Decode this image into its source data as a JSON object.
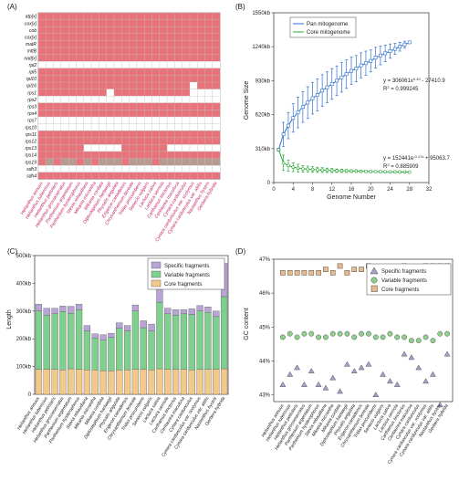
{
  "chart_data": [
    {
      "panel_label": "(A)",
      "type": "heatmap",
      "genes": [
        "atp[x]",
        "cox[x]",
        "cob",
        "cox[x]",
        "matR",
        "mttB",
        "nad[x]",
        "rpl2",
        "rpl5",
        "rpl10",
        "rpl16",
        "rps1",
        "rps2",
        "rps3",
        "rps4",
        "rps7",
        "rps10",
        "rps11",
        "rps12",
        "rps13",
        "rps14",
        "rps19",
        "sdh3",
        "sdh4"
      ],
      "species": [
        "Helianthus annuus",
        "Helianthus tuberosus",
        "Helianthus petiolaris",
        "Helianthus grosseserratus",
        "Parthenium argentatum",
        "Parthenium hysterophorus",
        "Stevia rebaudiana",
        "Mikania micrantha",
        "Mikania cordata",
        "Diplostephium hartwegii",
        "Physalis angulata",
        "Erigeron canadensis",
        "Chrysanthemum boreale",
        "Tridax procumbens",
        "Senecio vulgaris",
        "Lactuca sativa",
        "Lactuca serriola",
        "Carthamus tinctorius",
        "Centaurea maculosa",
        "Cynara cardunculus",
        "Cynara cardunculus var. scolymus",
        "Cynara cardunculus var. altilis",
        "Nastanthus hystrix",
        "Gerbera hybrida"
      ],
      "colors": {
        "present": "#e8737a",
        "absent": "#ffffff",
        "partial": "#b89a90"
      },
      "matrix": [
        "111111111111111111111111",
        "111111111111111111111111",
        "111111111111111111111111",
        "111111111111111111111111",
        "111111111111111111111111",
        "111111111111111111111111",
        "111111111111111111111111",
        "000000000000000000000000",
        "111111111111111111111111",
        "111111111111111111111111",
        "111111111111111111110111",
        "111111111011111111110000",
        "000000000000000000000000",
        "111111111111111111111111",
        "111111111111111111111111",
        "000000000000000000000000",
        "000000000000000000000000",
        "111111111111111111111111",
        "111111111111111111111111",
        "111111000001111110000000",
        "111111111111111111111111",
        "121221212221222122222222",
        "000000000000000000000000",
        "111111111111111111111111"
      ]
    },
    {
      "panel_label": "(B)",
      "type": "line",
      "xlabel": "Genome Number",
      "ylabel": "Genome Size",
      "xlim": [
        0,
        32
      ],
      "ylim": [
        0,
        1550
      ],
      "xticks": [
        "0",
        "4",
        "8",
        "12",
        "16",
        "20",
        "24",
        "28",
        "32"
      ],
      "yticks": [
        "0",
        "310kb",
        "620kb",
        "930kb",
        "1240kb",
        "1550kb"
      ],
      "legend": [
        "Pan mitogenome",
        "Core mitogenome"
      ],
      "legend_position": "top-left",
      "series": [
        {
          "name": "Pan mitogenome",
          "color": "#2f6fd0",
          "x": [
            1,
            2,
            3,
            4,
            5,
            6,
            7,
            8,
            9,
            10,
            11,
            12,
            13,
            14,
            15,
            16,
            17,
            18,
            19,
            20,
            21,
            22,
            23,
            24,
            25,
            26,
            27,
            28
          ],
          "y": [
            300,
            440,
            520,
            590,
            640,
            690,
            730,
            770,
            800,
            840,
            870,
            900,
            930,
            960,
            990,
            1020,
            1040,
            1070,
            1090,
            1110,
            1140,
            1160,
            1180,
            1200,
            1220,
            1240,
            1260,
            1280
          ],
          "err": [
            0,
            110,
            120,
            130,
            140,
            140,
            145,
            145,
            145,
            145,
            140,
            140,
            135,
            135,
            130,
            125,
            120,
            115,
            110,
            100,
            95,
            85,
            75,
            65,
            50,
            40,
            30,
            0
          ]
        },
        {
          "name": "Core mitogenome",
          "color": "#2ea83a",
          "x": [
            1,
            2,
            3,
            4,
            5,
            6,
            7,
            8,
            9,
            10,
            11,
            12,
            13,
            14,
            15,
            16,
            17,
            18,
            19,
            20,
            21,
            22,
            23,
            24,
            25,
            26,
            27,
            28
          ],
          "y": [
            300,
            180,
            155,
            140,
            132,
            126,
            122,
            119,
            116,
            114,
            112,
            110,
            108,
            107,
            106,
            105,
            104,
            103,
            102,
            101,
            100,
            99,
            98,
            98,
            97,
            96,
            96,
            95
          ],
          "err": [
            0,
            70,
            50,
            40,
            35,
            30,
            28,
            26,
            24,
            22,
            20,
            18,
            16,
            15,
            14,
            13,
            12,
            11,
            10,
            9,
            8,
            7,
            6,
            5,
            4,
            3,
            2,
            0
          ]
        }
      ],
      "annotations": [
        {
          "text": "y = 306061x",
          "sup": "0.43",
          "rest": " - 27410.9"
        },
        {
          "text": "R",
          "sup": "2",
          "rest": " = 0.999245"
        },
        {
          "text": "y = 152441e",
          "sup": "-0.17x",
          "rest": " + 95063.7"
        },
        {
          "text": "R",
          "sup": "2",
          "rest": " = 0.885909"
        }
      ]
    },
    {
      "panel_label": "(C)",
      "type": "bar",
      "ylabel": "Length",
      "ylim": [
        0,
        500
      ],
      "yticks": [
        "0",
        "100kb",
        "200kb",
        "300kb",
        "400kb",
        "500kb"
      ],
      "legend": [
        "Specific fragments",
        "Variable fragments",
        "Core fragments"
      ],
      "legend_position": "top-right",
      "categories": [
        "Helianthus annuus",
        "Helianthus tuberosus",
        "Helianthus petiolaris",
        "Helianthus grosseserratus",
        "Parthenium argentatum",
        "Parthenium hysterophorus",
        "Stevia rebaudiana",
        "Mikania micrantha",
        "Mikania cordata",
        "Diplostephium hartwegii",
        "Physalis angulata",
        "Erigeron canadensis",
        "Chrysanthemum boreale",
        "Tridax procumbens",
        "Senecio vulgaris",
        "Lactuca sativa",
        "Lactuca serriola",
        "Carthamus tinctorius",
        "Centaurea maculosa",
        "Cynara cardunculus",
        "Cynara cardunculus var. scolymus",
        "Cynara cardunculus var. altilis",
        "Nastanthus hystrix",
        "Gerbera hybrida"
      ],
      "series": [
        {
          "name": "Core fragments",
          "color": "#f3c98b",
          "values": [
            90,
            90,
            90,
            88,
            92,
            90,
            88,
            88,
            85,
            85,
            88,
            88,
            90,
            90,
            88,
            92,
            90,
            90,
            90,
            88,
            90,
            90,
            90,
            92
          ]
        },
        {
          "name": "Variable fragments",
          "color": "#7fcf8f",
          "values": [
            210,
            195,
            200,
            210,
            200,
            215,
            140,
            115,
            110,
            120,
            150,
            140,
            210,
            150,
            140,
            240,
            200,
            195,
            200,
            200,
            210,
            205,
            190,
            260
          ]
        },
        {
          "name": "Specific fragments",
          "color": "#b9a4d6",
          "values": [
            25,
            25,
            20,
            20,
            25,
            20,
            20,
            15,
            20,
            15,
            20,
            20,
            22,
            25,
            25,
            65,
            20,
            20,
            15,
            20,
            20,
            20,
            20,
            120
          ]
        }
      ]
    },
    {
      "panel_label": "(D)",
      "type": "scatter",
      "ylabel": "GC content",
      "ylim": [
        42.8,
        47.0
      ],
      "yticks": [
        "43%",
        "44%",
        "45%",
        "46%",
        "47%"
      ],
      "legend": [
        "Specific fragments",
        "Variable fragments",
        "Core fragments"
      ],
      "legend_position": "right",
      "categories": [
        "Helianthus annuus",
        "Helianthus tuberosus",
        "Helianthus petiolaris",
        "Helianthus grosseserratus",
        "Parthenium argentatum",
        "Parthenium hysterophorus",
        "Stevia rebaudiana",
        "Mikania micrantha",
        "Mikania cordata",
        "Diplostephium hartwegii",
        "Physalis angulata",
        "Erigeron canadensis",
        "Chrysanthemum boreale",
        "Tridax procumbens",
        "Senecio vulgaris",
        "Lactuca sativa",
        "Lactuca serriola",
        "Carthamus tinctorius",
        "Centaurea maculosa",
        "Cynara cardunculus",
        "Cynara cardunculus var. scolymus",
        "Cynara cardunculus var. altilis",
        "Nastanthus hystrix",
        "Gerbera hybrida"
      ],
      "series": [
        {
          "name": "Specific fragments",
          "marker": "triangle",
          "color": "#a8a0cf",
          "values": [
            43.3,
            43.6,
            43.8,
            43.3,
            43.7,
            43.3,
            43.2,
            43.5,
            43.1,
            43.9,
            43.7,
            43.8,
            43.9,
            43.0,
            43.6,
            43.4,
            43.3,
            44.2,
            44.1,
            43.8,
            43.4,
            43.6,
            42.7,
            44.2
          ]
        },
        {
          "name": "Variable fragments",
          "marker": "circle",
          "color": "#8fd08f",
          "values": [
            44.7,
            44.8,
            44.7,
            44.8,
            44.8,
            44.7,
            44.7,
            44.8,
            44.8,
            44.8,
            44.7,
            44.8,
            44.8,
            44.7,
            44.7,
            44.8,
            44.7,
            44.7,
            44.6,
            44.6,
            44.7,
            44.6,
            44.8,
            44.8
          ]
        },
        {
          "name": "Core fragments",
          "marker": "square",
          "color": "#e8b98a",
          "values": [
            46.6,
            46.6,
            46.6,
            46.6,
            46.6,
            46.6,
            46.7,
            46.6,
            46.8,
            46.6,
            46.7,
            46.7,
            46.8,
            46.6,
            46.6,
            46.6,
            46.7,
            46.8,
            46.7,
            46.7,
            46.8,
            46.8,
            46.8,
            46.8
          ]
        }
      ]
    }
  ]
}
